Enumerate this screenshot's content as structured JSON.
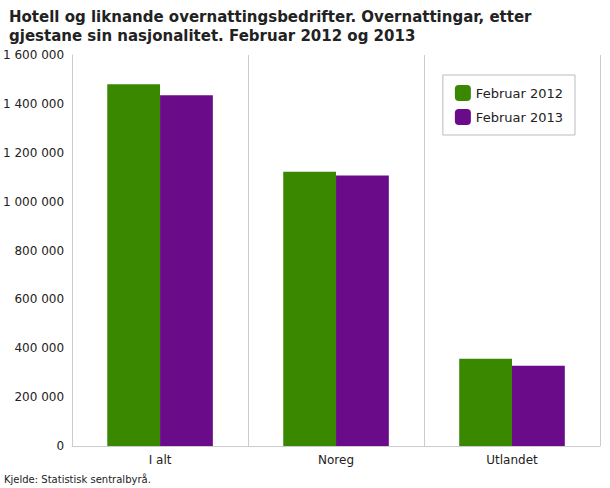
{
  "chart_data": {
    "type": "bar",
    "title": "Hotell og liknande overnattingsbedrifter. Overnattingar, etter gjestane sin nasjonalitet. Februar 2012 og 2013",
    "source": "Kjelde: Statistisk sentralbyrå.",
    "categories": [
      "I alt",
      "Noreg",
      "Utlandet"
    ],
    "series": [
      {
        "name": "Februar 2012",
        "color": "#3a8700",
        "values": [
          1480000,
          1122000,
          357000
        ]
      },
      {
        "name": "Februar 2013",
        "color": "#6a0b8a",
        "values": [
          1435000,
          1107000,
          328000
        ]
      }
    ],
    "ylim": [
      0,
      1600000
    ],
    "yticks": [
      0,
      {
        "value": 200000,
        "label": "200 000"
      },
      {
        "value": 400000,
        "label": "400 000"
      },
      {
        "value": 600000,
        "label": "600 000"
      },
      {
        "value": 800000,
        "label": "800 000"
      },
      {
        "value": 1000000,
        "label": "1 000 000"
      },
      {
        "value": 1200000,
        "label": "1 200 000"
      },
      {
        "value": 1400000,
        "label": "1 400 000"
      },
      {
        "value": 1600000,
        "label": "1 600 000"
      }
    ],
    "grid": true,
    "legend": "upper right"
  }
}
